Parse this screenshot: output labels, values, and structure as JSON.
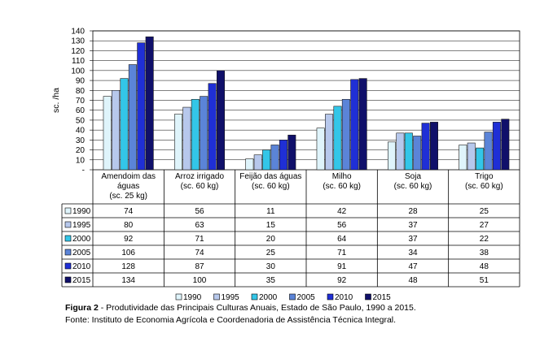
{
  "chart_data": {
    "type": "bar",
    "ylabel": "sc. /ha",
    "ylim": [
      0,
      140
    ],
    "yticks": [
      "-",
      "10",
      "20",
      "30",
      "40",
      "50",
      "60",
      "70",
      "80",
      "90",
      "100",
      "110",
      "120",
      "130",
      "140"
    ],
    "grid": true,
    "legend": "bottom",
    "categories": [
      [
        "Amendoim das",
        "águas",
        "(sc. 25 kg)"
      ],
      [
        "Arroz irrigado",
        "(sc. 60 kg)"
      ],
      [
        "Feijão das águas",
        "(sc. 60 kg)"
      ],
      [
        "Milho",
        "(sc. 60 kg)"
      ],
      [
        "Soja",
        "(sc. 60 kg)"
      ],
      [
        "Trigo",
        "(sc. 60 kg)"
      ]
    ],
    "series": [
      {
        "name": "1990",
        "color": "#dff4fb",
        "values": [
          74,
          56,
          11,
          42,
          28,
          25
        ]
      },
      {
        "name": "1995",
        "color": "#b7c8ec",
        "values": [
          80,
          63,
          15,
          56,
          37,
          27
        ]
      },
      {
        "name": "2000",
        "color": "#33c6e8",
        "values": [
          92,
          71,
          20,
          64,
          37,
          22
        ]
      },
      {
        "name": "2005",
        "color": "#5b84d8",
        "values": [
          106,
          74,
          25,
          71,
          34,
          38
        ]
      },
      {
        "name": "2010",
        "color": "#1f2fd6",
        "values": [
          128,
          87,
          30,
          91,
          47,
          48
        ]
      },
      {
        "name": "2015",
        "color": "#10106a",
        "values": [
          134,
          100,
          35,
          92,
          48,
          51
        ]
      }
    ]
  },
  "caption": {
    "figure_label": "Figura 2",
    "figure_text": " - Produtividade das Principais Culturas Anuais, Estado de São Paulo, 1990 a 2015.",
    "source": "Fonte: Instituto de Economia Agrícola e Coordenadoria de Assistência Técnica Integral."
  }
}
